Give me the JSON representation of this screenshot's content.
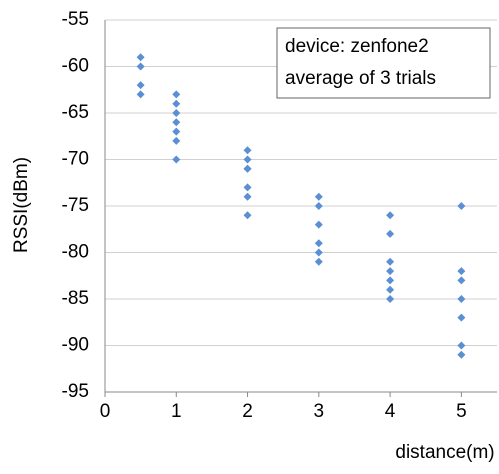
{
  "chart_data": {
    "type": "scatter",
    "x_label": "distance(m)",
    "y_label": "RSSI(dBm)",
    "annotation": [
      "device: zenfone2",
      "average of 3 trials"
    ],
    "x": [
      0.5,
      0.5,
      0.5,
      0.5,
      1,
      1,
      1,
      1,
      1,
      1,
      1,
      2,
      2,
      2,
      2,
      2,
      2,
      2,
      3,
      3,
      3,
      3,
      3,
      3,
      4,
      4,
      4,
      4,
      4,
      4,
      4,
      5,
      5,
      5,
      5,
      5,
      5,
      5
    ],
    "values": [
      -59,
      -60,
      -62,
      -63,
      -63,
      -64,
      -65,
      -66,
      -67,
      -68,
      -70,
      -69,
      -70,
      -71,
      -71,
      -73,
      -74,
      -76,
      -74,
      -75,
      -77,
      -79,
      -80,
      -81,
      -76,
      -78,
      -81,
      -82,
      -83,
      -84,
      -85,
      -75,
      -82,
      -83,
      -85,
      -87,
      -90,
      -91
    ],
    "color": "#5b8fd4",
    "xlim": [
      0,
      5.5
    ],
    "xticks": [
      0,
      1,
      2,
      3,
      4,
      5
    ],
    "ylim": [
      -95,
      -55
    ],
    "yticks": [
      -95,
      -90,
      -85,
      -80,
      -75,
      -70,
      -65,
      -60,
      -55
    ],
    "grid": true
  }
}
